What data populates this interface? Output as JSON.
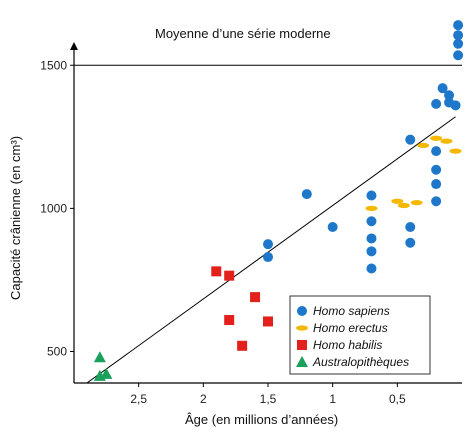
{
  "chart_data": {
    "type": "scatter",
    "title": "",
    "xlabel": "Âge (en millions d’années)",
    "ylabel": "Capacité crânienne (en cm³)",
    "x_reversed": true,
    "xlim": [
      3.0,
      0.0
    ],
    "ylim": [
      390,
      1700
    ],
    "x_ticks": [
      {
        "value": 2.5,
        "label": "2,5"
      },
      {
        "value": 2.0,
        "label": "2"
      },
      {
        "value": 1.5,
        "label": "1,5"
      },
      {
        "value": 1.0,
        "label": "1"
      },
      {
        "value": 0.5,
        "label": "0,5"
      }
    ],
    "y_ticks": [
      {
        "value": 500,
        "label": "500"
      },
      {
        "value": 1000,
        "label": "1000"
      },
      {
        "value": 1500,
        "label": "1500"
      }
    ],
    "reference_line": {
      "y": 1500,
      "label": "Moyenne d’une série moderne"
    },
    "trend_line": {
      "points": [
        [
          2.9,
          390
        ],
        [
          0.05,
          1320
        ]
      ]
    },
    "legend_position": "bottom-right",
    "series": [
      {
        "name": "Homo sapiens",
        "marker": "circle",
        "color": "#1f77c9",
        "points": [
          [
            1.5,
            875
          ],
          [
            1.5,
            830
          ],
          [
            1.2,
            1050
          ],
          [
            1.0,
            935
          ],
          [
            0.7,
            1045
          ],
          [
            0.7,
            955
          ],
          [
            0.7,
            895
          ],
          [
            0.7,
            850
          ],
          [
            0.7,
            790
          ],
          [
            0.4,
            1240
          ],
          [
            0.4,
            935
          ],
          [
            0.4,
            880
          ],
          [
            0.2,
            1365
          ],
          [
            0.2,
            1200
          ],
          [
            0.2,
            1135
          ],
          [
            0.2,
            1085
          ],
          [
            0.2,
            1025
          ],
          [
            0.15,
            1420
          ],
          [
            0.1,
            1395
          ],
          [
            0.1,
            1370
          ],
          [
            0.05,
            1360
          ],
          [
            0.03,
            1640
          ],
          [
            0.03,
            1605
          ],
          [
            0.03,
            1575
          ],
          [
            0.03,
            1535
          ]
        ]
      },
      {
        "name": "Homo erectus",
        "marker": "ellipse",
        "color": "#f5b800",
        "points": [
          [
            0.7,
            1000
          ],
          [
            0.5,
            1025
          ],
          [
            0.45,
            1010
          ],
          [
            0.35,
            1020
          ],
          [
            0.2,
            1245
          ],
          [
            0.12,
            1235
          ],
          [
            0.3,
            1220
          ],
          [
            0.05,
            1200
          ]
        ]
      },
      {
        "name": "Homo habilis",
        "marker": "square",
        "color": "#e3201b",
        "points": [
          [
            1.9,
            780
          ],
          [
            1.8,
            765
          ],
          [
            1.6,
            690
          ],
          [
            1.8,
            610
          ],
          [
            1.5,
            605
          ],
          [
            1.7,
            520
          ]
        ]
      },
      {
        "name": "Australopithèques",
        "marker": "triangle",
        "color": "#19a05a",
        "points": [
          [
            2.8,
            480
          ],
          [
            2.75,
            422
          ],
          [
            2.8,
            415
          ]
        ]
      }
    ]
  }
}
